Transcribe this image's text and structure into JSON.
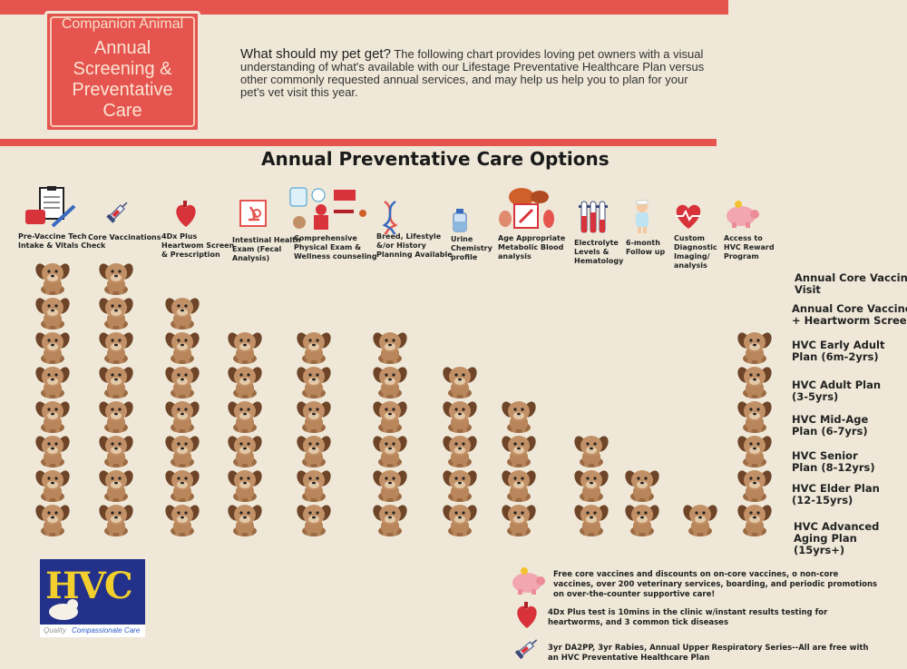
{
  "header": {
    "badge_top": "Companion Animal",
    "badge_title_lines": [
      "Annual",
      "Screening &",
      "Preventative",
      "Care"
    ],
    "intro_lead": "What should my pet get?",
    "intro_text": "The following chart provides loving pet owners with a visual understanding of what's available with our Lifestage Preventative Healthcare Plan versus other commonly requested annual services, and may help us help you to plan for your pet's vet visit this year."
  },
  "chart_title": "Annual Preventative Care Options",
  "columns": [
    {
      "lines": [
        "Pre-Vaccine Tech",
        "Intake & Vitals Check"
      ],
      "icon": "clipboard-icon"
    },
    {
      "lines": [
        "Core Vaccinations"
      ],
      "icon": "syringe-icon"
    },
    {
      "lines": [
        "4Dx Plus",
        "Heartwom Screen",
        "& Prescription"
      ],
      "icon": "heart-icon"
    },
    {
      "lines": [
        "Intestinal Health",
        "Exam (Fecal",
        "Analysis)"
      ],
      "icon": "microscope-icon"
    },
    {
      "lines": [
        "Comprehensive",
        "Physical Exam &",
        "Wellness counseling"
      ],
      "icon": "exam-icon"
    },
    {
      "lines": [
        "Breed, Lifestyle",
        "&/or History",
        "Planning Available"
      ],
      "icon": "dna-icon"
    },
    {
      "lines": [
        "Urine",
        "Chemistry",
        "profile"
      ],
      "icon": "bottle-icon"
    },
    {
      "lines": [
        "Age Appropriate",
        "Metabolic Blood",
        "analysis"
      ],
      "icon": "organs-icon"
    },
    {
      "lines": [
        "Electrolyte",
        "Levels &",
        "Hematology"
      ],
      "icon": "test-tubes-icon"
    },
    {
      "lines": [
        "6-month",
        "Follow up"
      ],
      "icon": "nurse-icon"
    },
    {
      "lines": [
        "Custom",
        "Diagnostic",
        "Imaging/",
        "analysis"
      ],
      "icon": "heartbeat-icon"
    },
    {
      "lines": [
        "Access to",
        "HVC Reward",
        "Program"
      ],
      "icon": "piggy-bank-icon"
    }
  ],
  "rows": [
    {
      "lines": [
        "Annual Core Vaccine",
        "Visit"
      ],
      "included": [
        1,
        1,
        0,
        0,
        0,
        0,
        0,
        0,
        0,
        0,
        0,
        0
      ]
    },
    {
      "lines": [
        "Annual Core Vaccines",
        "+ Heartworm Screen"
      ],
      "included": [
        1,
        1,
        1,
        0,
        0,
        0,
        0,
        0,
        0,
        0,
        0,
        0
      ]
    },
    {
      "lines": [
        "HVC Early Adult",
        "Plan (6m-2yrs)"
      ],
      "included": [
        1,
        1,
        1,
        1,
        1,
        1,
        0,
        0,
        0,
        0,
        0,
        1
      ]
    },
    {
      "lines": [
        "HVC Adult Plan",
        "(3-5yrs)"
      ],
      "included": [
        1,
        1,
        1,
        1,
        1,
        1,
        1,
        0,
        0,
        0,
        0,
        1
      ]
    },
    {
      "lines": [
        "HVC Mid-Age",
        "Plan (6-7yrs)"
      ],
      "included": [
        1,
        1,
        1,
        1,
        1,
        1,
        1,
        1,
        0,
        0,
        0,
        1
      ]
    },
    {
      "lines": [
        "HVC Senior",
        "Plan (8-12yrs)"
      ],
      "included": [
        1,
        1,
        1,
        1,
        1,
        1,
        1,
        1,
        1,
        0,
        0,
        1
      ]
    },
    {
      "lines": [
        "HVC Elder Plan",
        "(12-15yrs)"
      ],
      "included": [
        1,
        1,
        1,
        1,
        1,
        1,
        1,
        1,
        1,
        1,
        0,
        1
      ]
    },
    {
      "lines": [
        "HVC Advanced",
        "Aging Plan",
        "(15yrs+)"
      ],
      "included": [
        1,
        1,
        1,
        1,
        1,
        1,
        1,
        1,
        1,
        1,
        1,
        1
      ]
    }
  ],
  "logo": {
    "text": "HVC",
    "sub_a": "Quality",
    "sub_b": "Compassionate Care"
  },
  "legend": [
    {
      "icon": "piggy-bank-icon",
      "lines": [
        "Free core vaccines and discounts on on-core vaccines, o non-core",
        "vaccines, over 200 veterinary services, boarding, and periodic promotions",
        "on over-the-counter supportive care!"
      ]
    },
    {
      "icon": "heart-icon",
      "lines": [
        "4Dx Plus test is 10mins in the clinic w/instant results testing for",
        "heartworms, and 3 common tick diseases"
      ]
    },
    {
      "icon": "syringe-icon",
      "lines": [
        "3yr DA2PP, 3yr Rabies, Annual Upper Respiratory Series--All are free with",
        "an HVC Preventative Healthcare Plan"
      ]
    }
  ],
  "colors": {
    "accent": "#e5544f",
    "background": "#efe8d8",
    "dog": "#b8865a",
    "dog_dark": "#6e4528"
  }
}
